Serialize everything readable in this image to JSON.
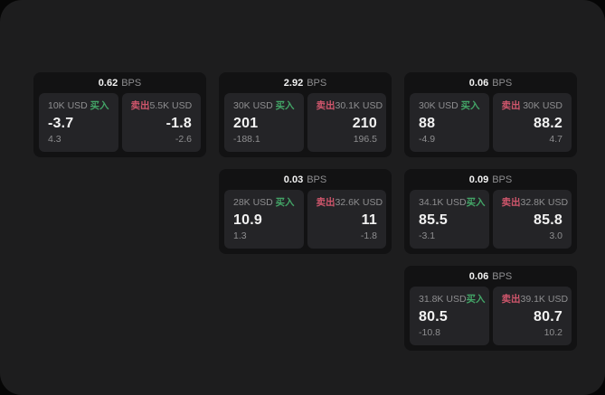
{
  "colors": {
    "buy_green": "#43a567",
    "sell_red": "#d0566c",
    "panel_bg": "#1d1d1e",
    "card_bg": "#121213",
    "tile_bg": "#242427",
    "text_primary": "#f2f2f2",
    "text_secondary": "#8e8e90"
  },
  "cards": [
    {
      "bps_value": "0.62",
      "bps_unit": "BPS",
      "grid": {
        "row": 1,
        "col": 1
      },
      "buy": {
        "amount": "10K USD",
        "side_label": "买入",
        "price": "-3.7",
        "delta": "4.3"
      },
      "sell": {
        "side_label": "卖出",
        "amount": "5.5K USD",
        "price": "-1.8",
        "delta": "-2.6"
      }
    },
    {
      "bps_value": "2.92",
      "bps_unit": "BPS",
      "grid": {
        "row": 1,
        "col": 2
      },
      "buy": {
        "amount": "30K USD",
        "side_label": "买入",
        "price": "201",
        "delta": "-188.1"
      },
      "sell": {
        "side_label": "卖出",
        "amount": "30.1K USD",
        "price": "210",
        "delta": "196.5"
      }
    },
    {
      "bps_value": "0.06",
      "bps_unit": "BPS",
      "grid": {
        "row": 1,
        "col": 3
      },
      "buy": {
        "amount": "30K USD",
        "side_label": "买入",
        "price": "88",
        "delta": "-4.9"
      },
      "sell": {
        "side_label": "卖出",
        "amount": "30K USD",
        "price": "88.2",
        "delta": "4.7"
      }
    },
    {
      "bps_value": "0.03",
      "bps_unit": "BPS",
      "grid": {
        "row": 2,
        "col": 2
      },
      "buy": {
        "amount": "28K USD",
        "side_label": "买入",
        "price": "10.9",
        "delta": "1.3"
      },
      "sell": {
        "side_label": "卖出",
        "amount": "32.6K USD",
        "price": "11",
        "delta": "-1.8"
      }
    },
    {
      "bps_value": "0.09",
      "bps_unit": "BPS",
      "grid": {
        "row": 2,
        "col": 3
      },
      "buy": {
        "amount": "34.1K USD",
        "side_label": "买入",
        "price": "85.5",
        "delta": "-3.1"
      },
      "sell": {
        "side_label": "卖出",
        "amount": "32.8K USD",
        "price": "85.8",
        "delta": "3.0"
      }
    },
    {
      "bps_value": "0.06",
      "bps_unit": "BPS",
      "grid": {
        "row": 3,
        "col": 3
      },
      "buy": {
        "amount": "31.8K USD",
        "side_label": "买入",
        "price": "80.5",
        "delta": "-10.8"
      },
      "sell": {
        "side_label": "卖出",
        "amount": "39.1K USD",
        "price": "80.7",
        "delta": "10.2"
      }
    }
  ]
}
